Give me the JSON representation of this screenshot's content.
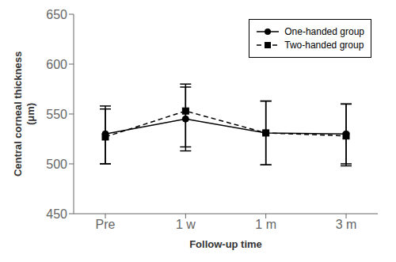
{
  "chart_data": {
    "type": "line",
    "xlabel": "Follow-up time",
    "ylabel": "Central corneal thickness\n(μm)",
    "categories": [
      "Pre",
      "1 w",
      "1 m",
      "3 m"
    ],
    "series": [
      {
        "name": "One-handed group",
        "color": "#000000",
        "marker": "circle",
        "line_style": "solid",
        "values": [
          530,
          545,
          531,
          530
        ],
        "error_low": [
          30,
          32,
          32,
          32
        ],
        "error_high": [
          28,
          32,
          32,
          30
        ]
      },
      {
        "name": "Two-handed group",
        "color": "#000000",
        "marker": "square",
        "line_style": "dashed",
        "values": [
          527,
          553,
          531,
          528
        ],
        "error_low": [
          27,
          36,
          32,
          28
        ],
        "error_high": [
          28,
          27,
          32,
          32
        ]
      }
    ],
    "ylim": [
      450,
      650
    ],
    "yticks": [
      450,
      500,
      550,
      600,
      650
    ],
    "grid": false,
    "legend": "upper right"
  }
}
